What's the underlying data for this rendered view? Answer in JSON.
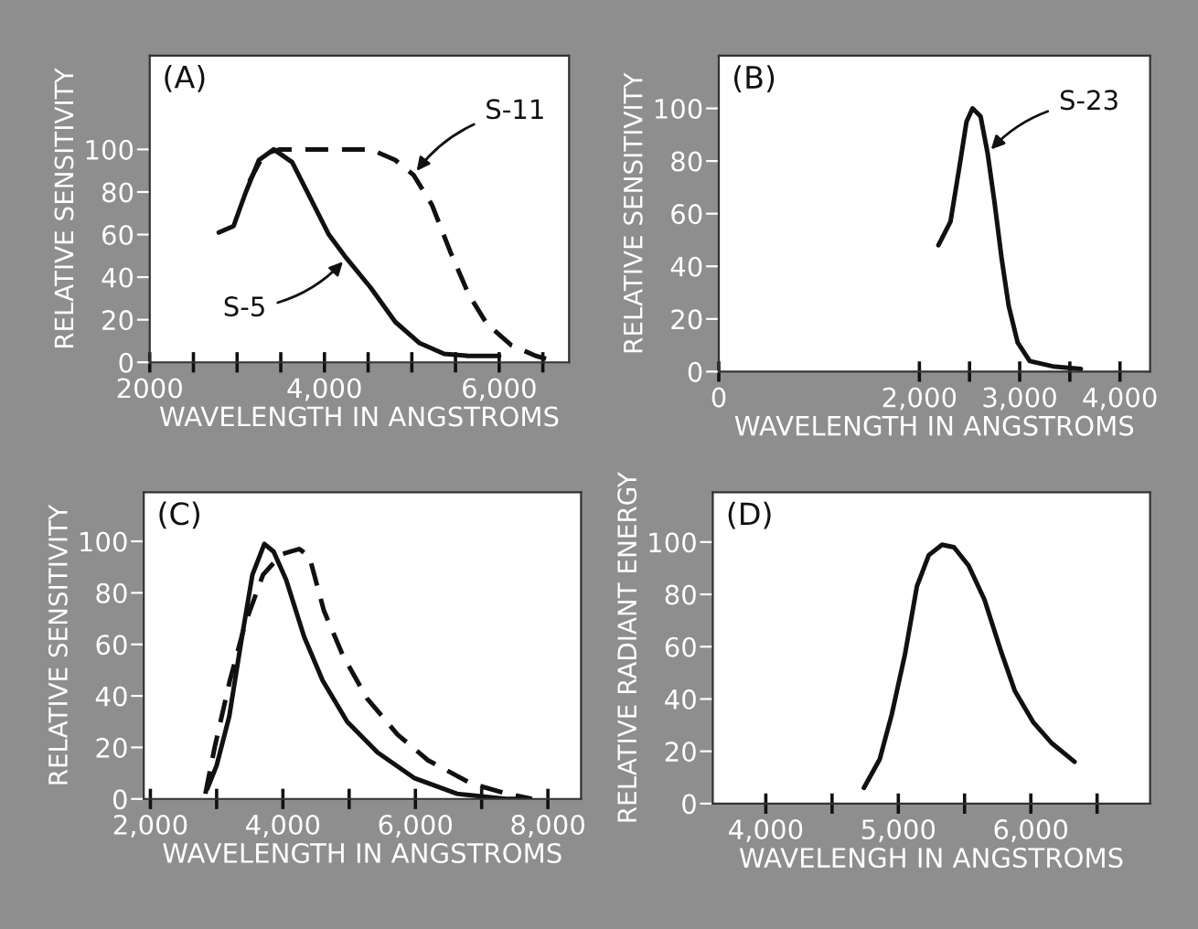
{
  "chart_data": [
    {
      "type": "line",
      "xlabel": "WAVELENGTH IN ANGSTROMS",
      "ylabel": "RELATIVE SENSITIVITY",
      "xlim": [
        2000,
        6800
      ],
      "ylim": [
        0,
        144
      ],
      "xticks": [
        2000,
        {
          "value": 2500,
          "label": null
        },
        {
          "value": 3000,
          "label": null
        },
        {
          "value": 3500,
          "label": null
        },
        {
          "value": 4000,
          "label": "4,000"
        },
        {
          "value": 4500,
          "label": null
        },
        {
          "value": 5000,
          "label": null
        },
        {
          "value": 5500,
          "label": null
        },
        {
          "value": 6000,
          "label": "6,000"
        },
        {
          "value": 6500,
          "label": null
        }
      ],
      "yticks": [
        0,
        20,
        40,
        60,
        80,
        100
      ],
      "grid": false,
      "legend": false,
      "series": [
        {
          "name": "S-5",
          "color": "#111111",
          "line_style": "solid",
          "x": [
            2790,
            2960,
            3100,
            3250,
            3420,
            3630,
            3840,
            4050,
            4250,
            4530,
            4810,
            5090,
            5370,
            5650,
            6000
          ],
          "values": [
            61,
            64,
            80,
            95,
            100,
            94,
            77,
            60,
            49,
            35,
            19,
            9,
            4,
            3,
            3
          ]
        },
        {
          "name": "S-11",
          "color": "#111111",
          "line_style": "dashed",
          "x": [
            3140,
            3310,
            3490,
            4000,
            4530,
            4810,
            5020,
            5230,
            5440,
            5650,
            5860,
            6140,
            6420,
            6590
          ],
          "values": [
            85,
            98,
            100,
            100,
            100,
            95,
            88,
            74,
            52,
            32,
            18,
            8,
            3,
            1
          ]
        }
      ],
      "annotations": [
        "(A)"
      ]
    },
    {
      "type": "line",
      "xlabel": "WAVELENGTH IN ANGSTROMS",
      "ylabel": "RELATIVE SENSITIVITY",
      "xlim": [
        0,
        4300
      ],
      "ylim": [
        0,
        120
      ],
      "xticks": [
        0,
        {
          "value": 2000,
          "label": "2,000"
        },
        {
          "value": 2500,
          "label": null
        },
        {
          "value": 3000,
          "label": "3,000"
        },
        {
          "value": 3500,
          "label": null
        },
        {
          "value": 4000,
          "label": "4,000"
        }
      ],
      "yticks": [
        0,
        20,
        40,
        60,
        80,
        100
      ],
      "grid": false,
      "legend": false,
      "series": [
        {
          "name": "S-23",
          "color": "#111111",
          "line_style": "solid",
          "x": [
            2190,
            2310,
            2400,
            2470,
            2530,
            2610,
            2680,
            2750,
            2820,
            2890,
            2980,
            3100,
            3330,
            3610
          ],
          "values": [
            48,
            57,
            78,
            95,
            100,
            97,
            83,
            64,
            43,
            25,
            11,
            4,
            2,
            1
          ]
        }
      ],
      "annotations": [
        "(B)"
      ]
    },
    {
      "type": "line",
      "xlabel": "WAVELENGTH IN ANGSTROMS",
      "ylabel": "RELATIVE SENSITIVITY",
      "xlim": [
        1900,
        8500
      ],
      "ylim": [
        0,
        119
      ],
      "xticks": [
        {
          "value": 2000,
          "label": "2,000"
        },
        {
          "value": 3000,
          "label": null
        },
        {
          "value": 4000,
          "label": "4,000"
        },
        {
          "value": 5000,
          "label": null
        },
        {
          "value": 6000,
          "label": "6,000"
        },
        {
          "value": 7000,
          "label": null
        },
        {
          "value": 8000,
          "label": "8,000"
        }
      ],
      "yticks": [
        0,
        20,
        40,
        60,
        80,
        100
      ],
      "grid": false,
      "legend": false,
      "series": [
        {
          "color": "#111111",
          "line_style": "solid",
          "x": [
            2860,
            3000,
            3190,
            3370,
            3540,
            3720,
            3860,
            4050,
            4320,
            4600,
            4970,
            5430,
            5990,
            6630,
            7370,
            7650
          ],
          "values": [
            4,
            13,
            32,
            61,
            87,
            99,
            96,
            85,
            63,
            46,
            30,
            18,
            8,
            2,
            0,
            0
          ]
        },
        {
          "color": "#111111",
          "line_style": "dashed",
          "x": [
            2830,
            2970,
            3200,
            3430,
            3700,
            3980,
            4250,
            4400,
            4620,
            4900,
            5270,
            5730,
            6190,
            6840,
            7390,
            7760
          ],
          "values": [
            2,
            20,
            46,
            68,
            87,
            95,
            97,
            94,
            73,
            56,
            39,
            25,
            15,
            6,
            2,
            0
          ]
        }
      ],
      "annotations": [
        "(C)"
      ]
    },
    {
      "type": "line",
      "xlabel": "WAVELENGH IN ANGSTROMS",
      "ylabel": "RELATIVE RADIANT ENERGY",
      "xlim": [
        3600,
        6900
      ],
      "ylim": [
        0,
        119
      ],
      "xticks": [
        {
          "value": 4000,
          "label": "4,000"
        },
        {
          "value": 4500,
          "label": null
        },
        {
          "value": 5000,
          "label": "5,000"
        },
        {
          "value": 5500,
          "label": null
        },
        {
          "value": 6000,
          "label": "6,000"
        },
        {
          "value": 6500,
          "label": null
        }
      ],
      "yticks": [
        0,
        20,
        40,
        60,
        80,
        100
      ],
      "grid": false,
      "legend": false,
      "series": [
        {
          "color": "#111111",
          "line_style": "solid",
          "x": [
            4740,
            4860,
            4950,
            5050,
            5140,
            5230,
            5330,
            5420,
            5530,
            5650,
            5770,
            5880,
            6020,
            6160,
            6330
          ],
          "values": [
            6,
            17,
            34,
            57,
            83,
            95,
            99,
            98,
            91,
            78,
            59,
            43,
            31,
            23,
            16
          ]
        }
      ],
      "annotations": [
        "(D)"
      ]
    }
  ]
}
